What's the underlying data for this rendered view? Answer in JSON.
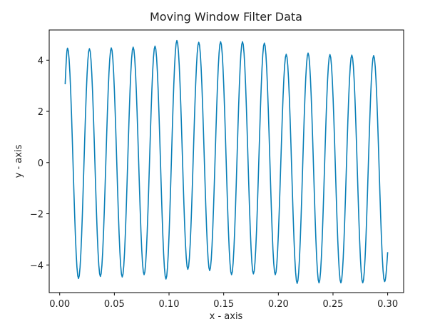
{
  "chart_data": {
    "type": "line",
    "title": "Moving Window Filter Data",
    "xlabel": "x - axis",
    "ylabel": "y - axis",
    "xlim": [
      -0.0096,
      0.3146
    ],
    "ylim": [
      -5.08,
      5.18
    ],
    "xticks": [
      {
        "value": 0.0,
        "label": "0.00"
      },
      {
        "value": 0.05,
        "label": "0.05"
      },
      {
        "value": 0.1,
        "label": "0.10"
      },
      {
        "value": 0.15,
        "label": "0.15"
      },
      {
        "value": 0.2,
        "label": "0.20"
      },
      {
        "value": 0.25,
        "label": "0.25"
      },
      {
        "value": 0.3,
        "label": "0.30"
      }
    ],
    "yticks": [
      {
        "value": -4,
        "label": "−4"
      },
      {
        "value": -2,
        "label": "−2"
      },
      {
        "value": 0,
        "label": "0"
      },
      {
        "value": 2,
        "label": "2"
      },
      {
        "value": 4,
        "label": "4"
      }
    ],
    "grid": false,
    "series": [
      {
        "color": "#0a7fb7",
        "x_range": [
          0.005,
          0.3
        ],
        "start_value": 3.06,
        "end_value": -3.5,
        "peaks": [
          {
            "x": 0.0072,
            "y": 4.47
          },
          {
            "x": 0.0272,
            "y": 4.45
          },
          {
            "x": 0.0472,
            "y": 4.48
          },
          {
            "x": 0.0672,
            "y": 4.51
          },
          {
            "x": 0.0872,
            "y": 4.55
          },
          {
            "x": 0.1072,
            "y": 4.77
          },
          {
            "x": 0.1272,
            "y": 4.7
          },
          {
            "x": 0.1472,
            "y": 4.72
          },
          {
            "x": 0.1672,
            "y": 4.72
          },
          {
            "x": 0.1872,
            "y": 4.67
          },
          {
            "x": 0.2072,
            "y": 4.23
          },
          {
            "x": 0.2272,
            "y": 4.28
          },
          {
            "x": 0.2472,
            "y": 4.22
          },
          {
            "x": 0.2672,
            "y": 4.2
          },
          {
            "x": 0.2872,
            "y": 4.18
          }
        ],
        "troughs": [
          {
            "x": 0.0172,
            "y": -4.53
          },
          {
            "x": 0.0372,
            "y": -4.45
          },
          {
            "x": 0.0572,
            "y": -4.47
          },
          {
            "x": 0.0772,
            "y": -4.38
          },
          {
            "x": 0.0972,
            "y": -4.55
          },
          {
            "x": 0.1172,
            "y": -4.17
          },
          {
            "x": 0.1372,
            "y": -4.22
          },
          {
            "x": 0.1572,
            "y": -4.38
          },
          {
            "x": 0.1772,
            "y": -4.35
          },
          {
            "x": 0.1972,
            "y": -4.38
          },
          {
            "x": 0.2172,
            "y": -4.72
          },
          {
            "x": 0.2372,
            "y": -4.7
          },
          {
            "x": 0.2572,
            "y": -4.7
          },
          {
            "x": 0.2772,
            "y": -4.7
          },
          {
            "x": 0.2972,
            "y": -4.65
          }
        ]
      }
    ]
  }
}
